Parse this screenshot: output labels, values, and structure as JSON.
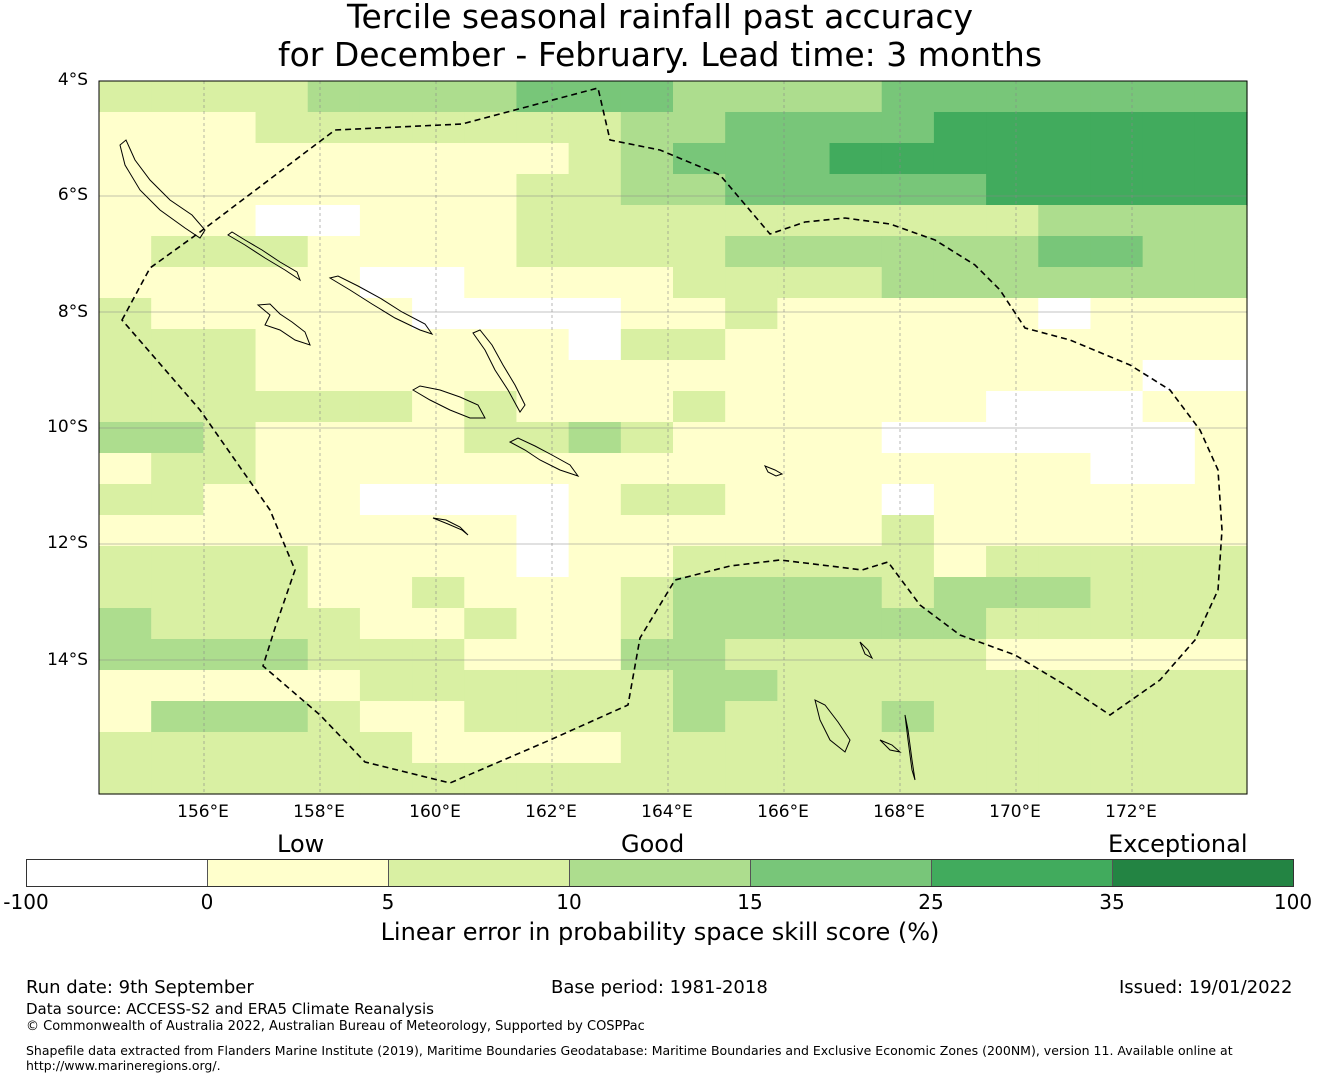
{
  "title_line1": "Tercile seasonal rainfall past accuracy",
  "title_line2": "for December - February. Lead time: 3 months",
  "map": {
    "lat_labels": [
      "4°S",
      "6°S",
      "8°S",
      "10°S",
      "12°S",
      "14°S"
    ],
    "lon_labels": [
      "156°E",
      "158°E",
      "160°E",
      "162°E",
      "164°E",
      "166°E",
      "168°E",
      "170°E",
      "172°E"
    ],
    "color_scale": [
      "#ffffff",
      "#ffffcc",
      "#d9f0a3",
      "#addd8e",
      "#78c679",
      "#41ab5d",
      "#238443"
    ],
    "grid_rows": [
      "2222333344433334444444",
      "1112222222334444555555",
      "1111111112344455555555",
      "1111111122334444455555",
      "1110011122222222223333",
      "1222111122223333334433",
      "1111100111122223333333",
      "2111110000112111110111",
      "2221111110221111111111",
      "2221111111111111111100",
      "2222221211121111100011",
      "3321111223211110000001",
      "1221111111111111111001",
      "2211100001221110111111",
      "1111111101111112111111",
      "2222111101122222122222",
      "2222112111233332333222",
      "3222211211233333322222",
      "3333222111332222211111",
      "1111122222233222222222",
      "1333211222232223222222",
      "2222221111222222222222",
      "2222222222222222222222"
    ]
  },
  "colorbar": {
    "category_labels": [
      "Low",
      "Good",
      "Exceptional"
    ],
    "tick_labels": [
      "-100",
      "0",
      "5",
      "10",
      "15",
      "25",
      "35",
      "100"
    ],
    "xlabel": "Linear error in probability space skill score (%)"
  },
  "footer": {
    "run_date": "Run date: 9th September",
    "base_period": "Base period: 1981-2018",
    "issued": "Issued: 19/01/2022",
    "data_source": "Data source: ACCESS-S2 and ERA5 Climate Reanalysis",
    "copyright": "© Commonwealth of Australia 2022, Australian Bureau of Meteorology, Supported by COSPPac",
    "shapefile": "Shapefile data extracted from Flanders Marine Institute (2019), Maritime Boundaries Geodatabase: Maritime Boundaries and Exclusive Economic Zones (200NM), version 11. Available online at",
    "shapefile_url": "http://www.marineregions.org/."
  }
}
